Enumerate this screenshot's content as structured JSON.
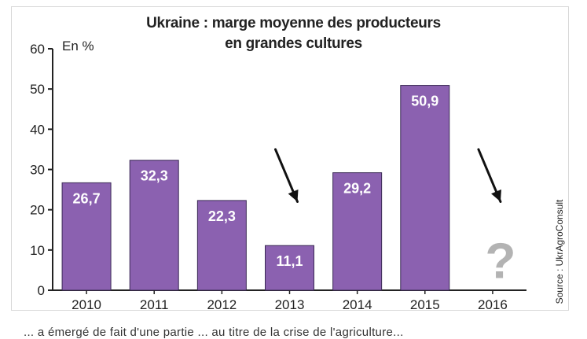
{
  "chart_data": {
    "type": "bar",
    "title": "Ukraine : marge moyenne des producteurs",
    "subtitle": "en grandes cultures",
    "ylabel": "En %",
    "categories": [
      "2010",
      "2011",
      "2012",
      "2013",
      "2014",
      "2015",
      "2016"
    ],
    "values": [
      26.7,
      32.3,
      22.3,
      11.1,
      29.2,
      50.9,
      null
    ],
    "value_labels": [
      "26,7",
      "32,3",
      "22,3",
      "11,1",
      "29,2",
      "50,9",
      "?"
    ],
    "ylim": [
      0,
      60
    ],
    "yticks": [
      0,
      10,
      20,
      30,
      40,
      50,
      60
    ],
    "grid": false,
    "bar_color": "#8b61b0",
    "annotations": [
      {
        "type": "arrow-down",
        "category": "2013"
      },
      {
        "type": "arrow-down",
        "category": "2016"
      },
      {
        "type": "question-mark",
        "category": "2016",
        "text": "?"
      }
    ],
    "source": "Source : UkrAgroConsult"
  },
  "footer": {
    "text": "... a émergé de fait d'une partie ... au titre de la crise de l'agriculture..."
  }
}
